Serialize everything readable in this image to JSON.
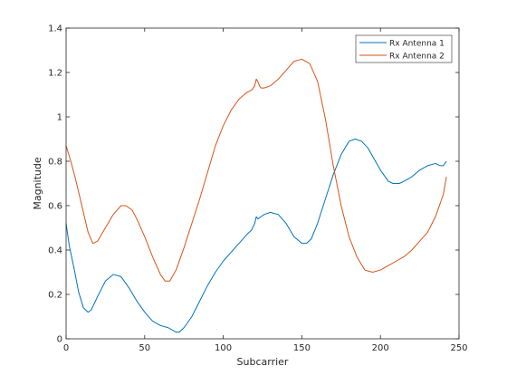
{
  "chart_data": {
    "type": "line",
    "title": "",
    "xlabel": "Subcarrier",
    "ylabel": "Magnitude",
    "xlim": [
      0,
      250
    ],
    "ylim": [
      0,
      1.4
    ],
    "xticks": [
      0,
      50,
      100,
      150,
      200,
      250
    ],
    "yticks": [
      0,
      0.2,
      0.4,
      0.6,
      0.8,
      1,
      1.2,
      1.4
    ],
    "xtick_labels": [
      "0",
      "50",
      "100",
      "150",
      "200",
      "250"
    ],
    "ytick_labels": [
      "0",
      "0.2",
      "0.4",
      "0.6",
      "0.8",
      "1",
      "1.2",
      "1.4"
    ],
    "grid": false,
    "legend_position": "top-right",
    "series": [
      {
        "name": "Rx Antenna 1",
        "color": "#0072bd",
        "x": [
          0,
          2,
          5,
          8,
          11,
          14,
          16,
          20,
          25,
          30,
          35,
          40,
          45,
          50,
          55,
          60,
          65,
          70,
          72,
          75,
          80,
          85,
          90,
          95,
          100,
          105,
          110,
          115,
          118,
          120,
          121,
          122,
          124,
          126,
          130,
          135,
          140,
          145,
          150,
          153,
          156,
          160,
          165,
          170,
          175,
          180,
          184,
          188,
          192,
          196,
          200,
          205,
          208,
          212,
          215,
          220,
          225,
          230,
          235,
          238,
          240,
          242
        ],
        "y": [
          0.52,
          0.42,
          0.32,
          0.21,
          0.14,
          0.12,
          0.13,
          0.19,
          0.26,
          0.29,
          0.28,
          0.23,
          0.17,
          0.12,
          0.08,
          0.06,
          0.05,
          0.03,
          0.03,
          0.05,
          0.1,
          0.17,
          0.24,
          0.3,
          0.35,
          0.39,
          0.43,
          0.47,
          0.49,
          0.52,
          0.55,
          0.54,
          0.55,
          0.56,
          0.57,
          0.56,
          0.52,
          0.46,
          0.43,
          0.43,
          0.45,
          0.52,
          0.63,
          0.74,
          0.83,
          0.89,
          0.9,
          0.89,
          0.86,
          0.81,
          0.76,
          0.71,
          0.7,
          0.7,
          0.71,
          0.73,
          0.76,
          0.78,
          0.79,
          0.78,
          0.78,
          0.8
        ]
      },
      {
        "name": "Rx Antenna 2",
        "color": "#d95319",
        "x": [
          0,
          3,
          6,
          10,
          14,
          17,
          20,
          25,
          30,
          35,
          38,
          42,
          45,
          50,
          55,
          60,
          63,
          66,
          70,
          75,
          80,
          85,
          90,
          95,
          100,
          105,
          110,
          115,
          118,
          120,
          121,
          122,
          123,
          124,
          126,
          130,
          135,
          140,
          145,
          150,
          155,
          160,
          165,
          170,
          175,
          180,
          185,
          190,
          195,
          200,
          205,
          210,
          215,
          220,
          225,
          230,
          235,
          240,
          242
        ],
        "y": [
          0.87,
          0.8,
          0.72,
          0.6,
          0.48,
          0.43,
          0.44,
          0.5,
          0.56,
          0.6,
          0.6,
          0.58,
          0.54,
          0.46,
          0.37,
          0.29,
          0.26,
          0.26,
          0.31,
          0.41,
          0.52,
          0.63,
          0.75,
          0.87,
          0.96,
          1.03,
          1.08,
          1.11,
          1.12,
          1.14,
          1.17,
          1.16,
          1.14,
          1.13,
          1.13,
          1.14,
          1.17,
          1.21,
          1.25,
          1.26,
          1.24,
          1.16,
          0.99,
          0.78,
          0.6,
          0.46,
          0.37,
          0.31,
          0.3,
          0.31,
          0.33,
          0.35,
          0.37,
          0.4,
          0.44,
          0.48,
          0.55,
          0.65,
          0.73
        ]
      }
    ]
  }
}
